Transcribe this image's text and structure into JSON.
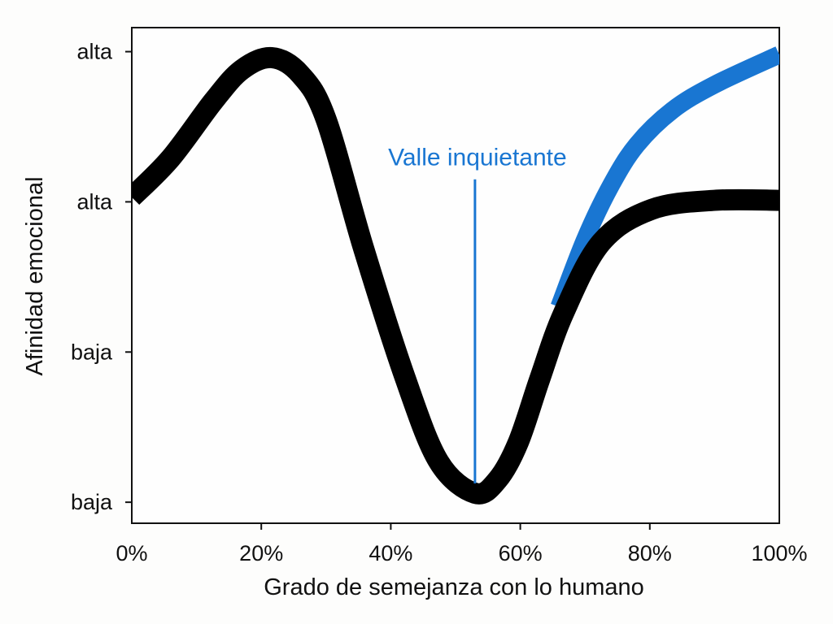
{
  "chart_data": {
    "type": "line",
    "title": "",
    "xlabel": "Grado de semejanza con lo humano",
    "ylabel": "Afinidad emocional",
    "xlim": [
      0,
      100
    ],
    "ylim": [
      -0.14,
      3.16
    ],
    "x_ticks": [
      {
        "value": 0,
        "label": "0%"
      },
      {
        "value": 20,
        "label": "20%"
      },
      {
        "value": 40,
        "label": "40%"
      },
      {
        "value": 60,
        "label": "60%"
      },
      {
        "value": 80,
        "label": "80%"
      },
      {
        "value": 100,
        "label": "100%"
      }
    ],
    "y_ticks": [
      {
        "value": 0,
        "label": "baja"
      },
      {
        "value": 1,
        "label": "baja"
      },
      {
        "value": 2,
        "label": "alta"
      },
      {
        "value": 3,
        "label": "alta"
      }
    ],
    "grid": false,
    "series": [
      {
        "color": "#000000",
        "x": [
          0,
          6,
          12.6,
          17,
          21.6,
          26,
          30,
          35.8,
          42.2,
          47.4,
          53,
          56.5,
          59.7,
          63,
          66.7,
          72.5,
          80.3,
          90,
          100
        ],
        "y": [
          2.03,
          2.29,
          2.67,
          2.88,
          2.96,
          2.85,
          2.55,
          1.69,
          0.83,
          0.27,
          0.06,
          0.15,
          0.4,
          0.82,
          1.26,
          1.73,
          1.95,
          2.01,
          2.01
        ]
      },
      {
        "color": "#1976d2",
        "x": [
          66,
          70,
          74,
          78,
          83.5,
          90,
          100
        ],
        "y": [
          1.3,
          1.75,
          2.11,
          2.38,
          2.61,
          2.78,
          2.98
        ]
      }
    ],
    "annotations": [
      {
        "text": "Valle inquietante",
        "x": 53,
        "y_from": 0.06,
        "y_to": 2.15,
        "color": "#1976d2"
      }
    ]
  }
}
